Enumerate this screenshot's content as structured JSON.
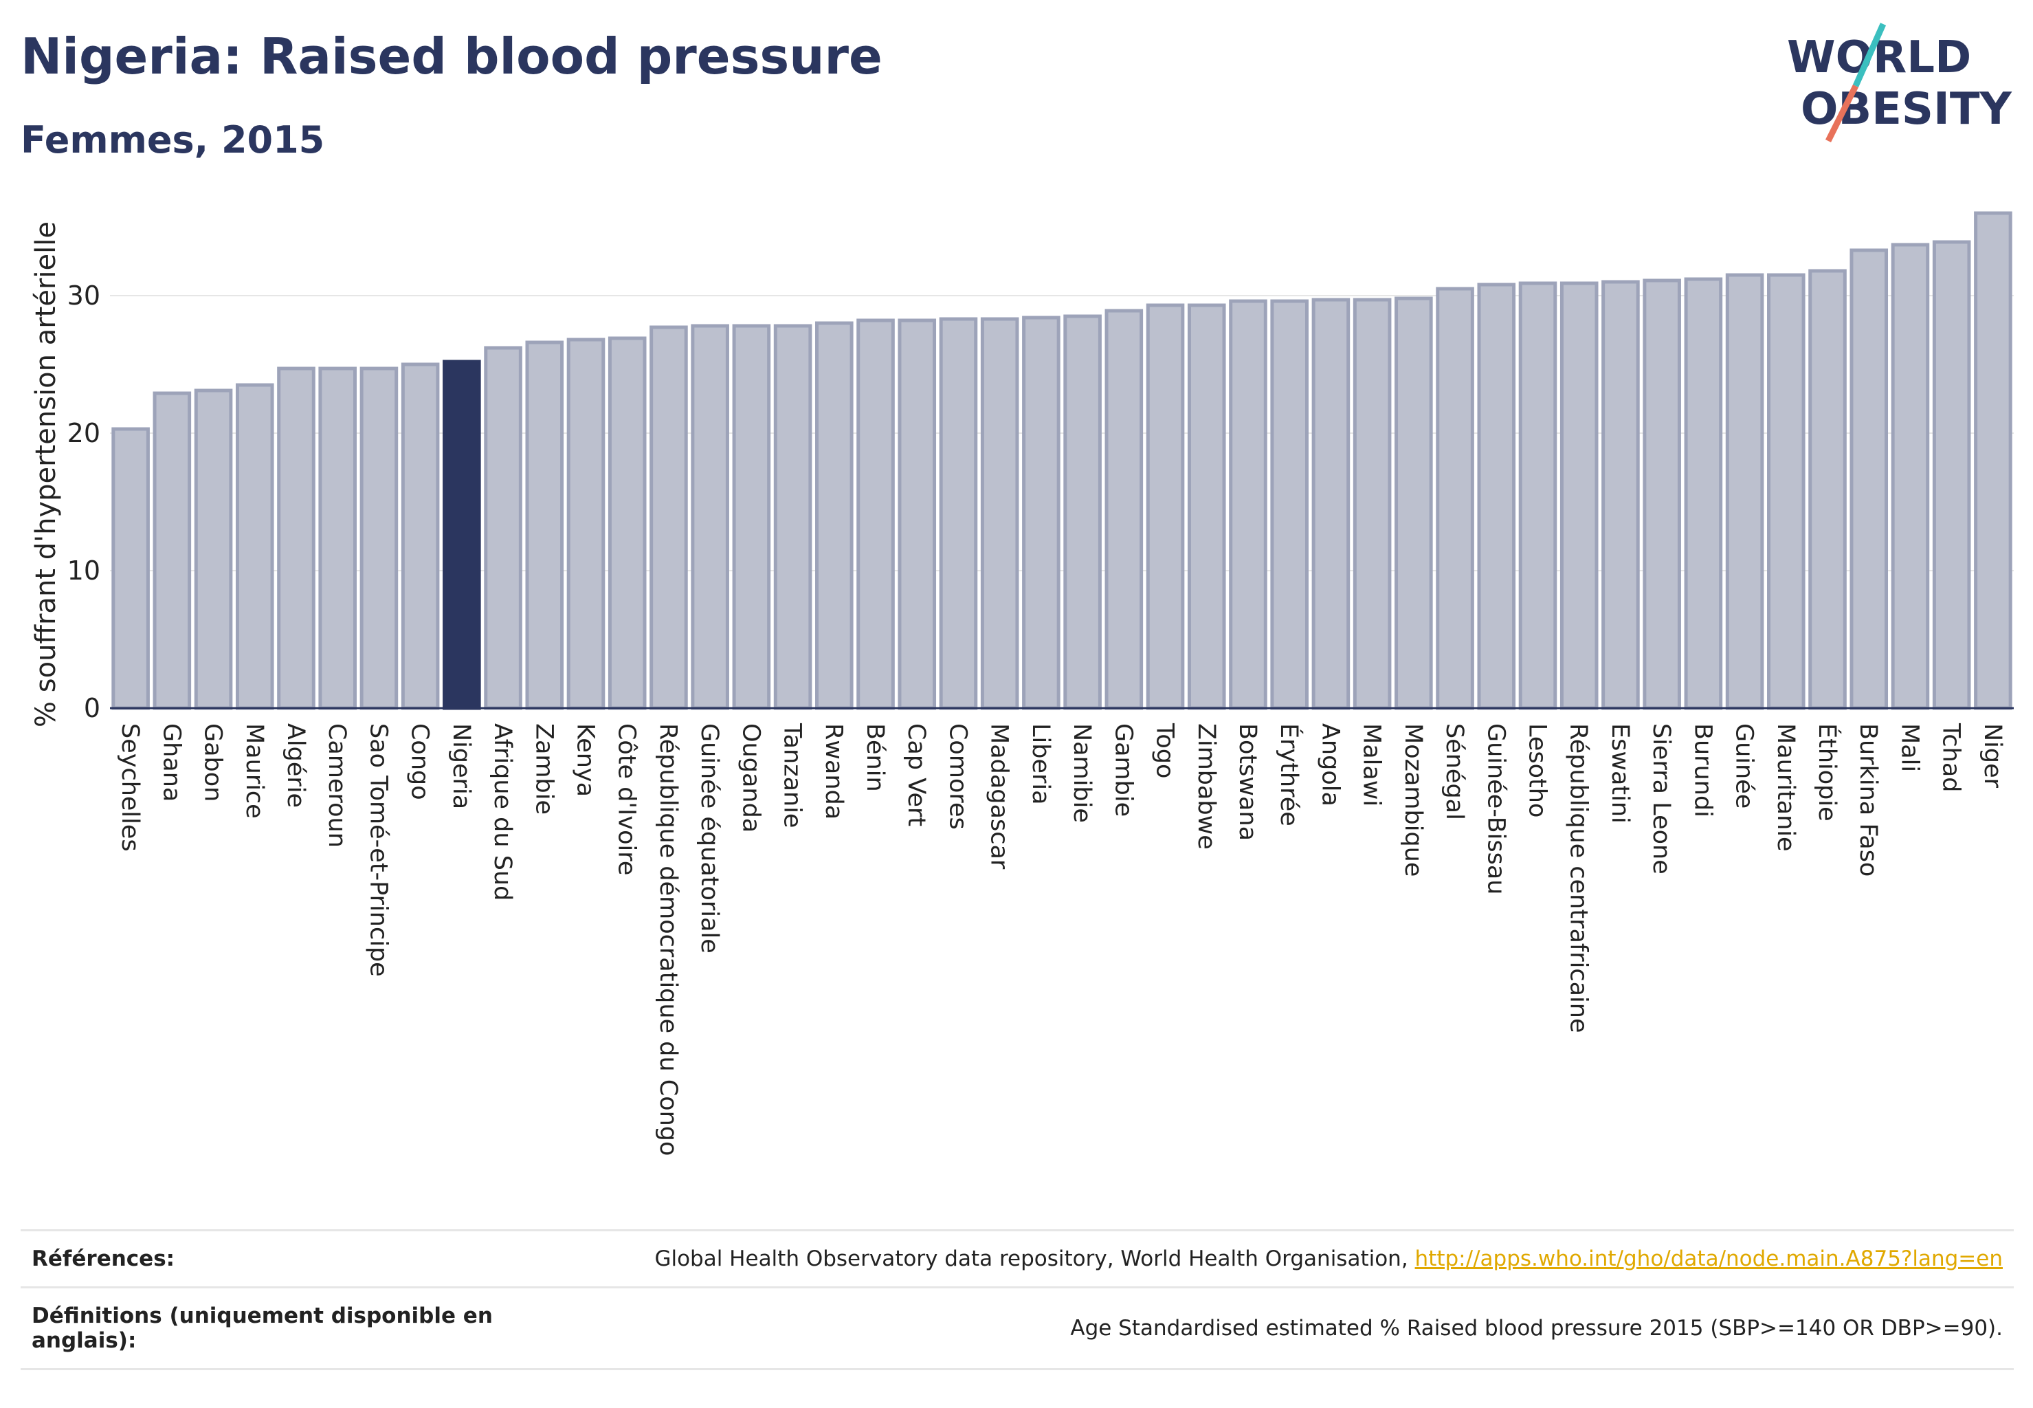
{
  "header": {
    "title": "Nigeria: Raised blood pressure",
    "subtitle": "Femmes, 2015"
  },
  "logo": {
    "line1": "WORLD",
    "line2": "OBESITY",
    "colors": {
      "text": "#2b365f",
      "slash_top": "#3bbfbf",
      "slash_bottom": "#e8725a"
    }
  },
  "chart_data": {
    "type": "bar",
    "ylabel": "% souffrant d'hypertension artérielle",
    "ylim": [
      0,
      37
    ],
    "yticks": [
      0,
      10,
      20,
      30
    ],
    "grid": true,
    "highlight": "Nigeria",
    "colors": {
      "bar": "#bcc0ce",
      "bar_edge": "#9da3b9",
      "highlight": "#2b365f"
    },
    "categories": [
      "Seychelles",
      "Ghana",
      "Gabon",
      "Maurice",
      "Algérie",
      "Cameroun",
      "Sao Tomé-et-Principe",
      "Congo",
      "Nigeria",
      "Afrique du Sud",
      "Zambie",
      "Kenya",
      "Côte d'Ivoire",
      "République démocratique du Congo",
      "Guinée équatoriale",
      "Ouganda",
      "Tanzanie",
      "Rwanda",
      "Bénin",
      "Cap Vert",
      "Comores",
      "Madagascar",
      "Liberia",
      "Namibie",
      "Gambie",
      "Togo",
      "Zimbabwe",
      "Botswana",
      "Érythrée",
      "Angola",
      "Malawi",
      "Mozambique",
      "Sénégal",
      "Guinée-Bissau",
      "Lesotho",
      "République centrafricaine",
      "Eswatini",
      "Sierra Leone",
      "Burundi",
      "Guinée",
      "Mauritanie",
      "Éthiopie",
      "Burkina Faso",
      "Mali",
      "Tchad",
      "Niger"
    ],
    "values": [
      20.3,
      22.9,
      23.1,
      23.5,
      24.7,
      24.7,
      24.7,
      25.0,
      25.2,
      26.2,
      26.6,
      26.8,
      26.9,
      27.7,
      27.8,
      27.8,
      27.8,
      28.0,
      28.2,
      28.2,
      28.3,
      28.3,
      28.4,
      28.5,
      28.9,
      29.3,
      29.3,
      29.6,
      29.6,
      29.7,
      29.7,
      29.8,
      30.5,
      30.8,
      30.9,
      30.9,
      31.0,
      31.1,
      31.2,
      31.5,
      31.5,
      31.8,
      33.3,
      33.7,
      33.9,
      36.0
    ]
  },
  "references": {
    "label": "Références:",
    "text": "Global Health Observatory data repository, World Health Organisation, ",
    "link": "http://apps.who.int/gho/data/node.main.A875?lang=en"
  },
  "definitions": {
    "label": "Définitions (uniquement disponible en anglais):",
    "text": "Age Standardised estimated % Raised blood pressure 2015 (SBP>=140 OR DBP>=90)."
  }
}
